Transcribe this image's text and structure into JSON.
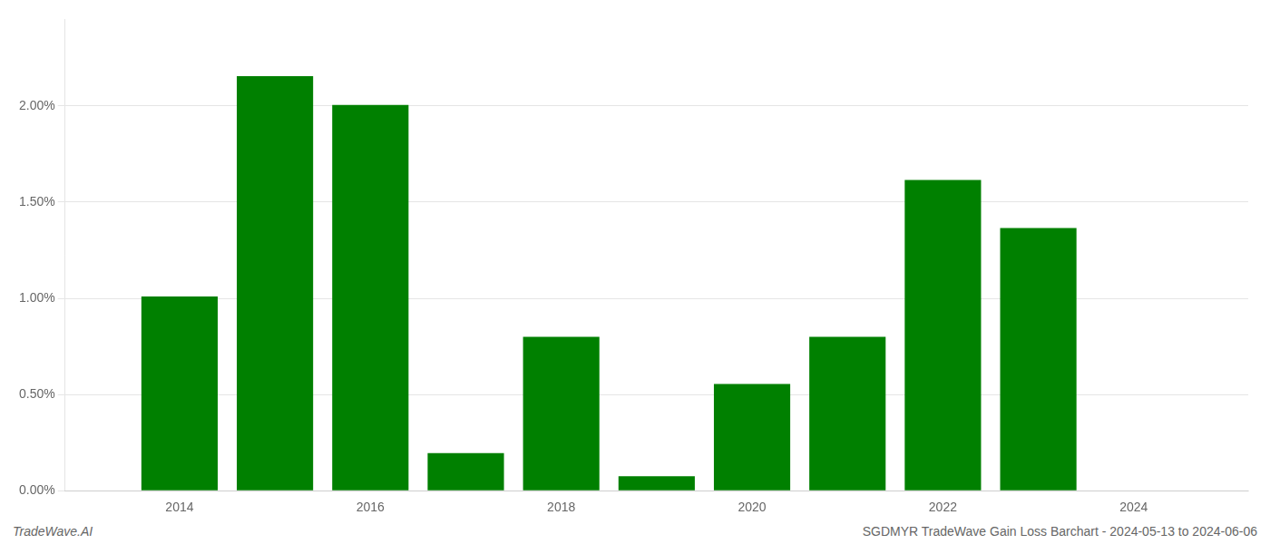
{
  "chart_data": {
    "type": "bar",
    "x": [
      2014,
      2015,
      2016,
      2017,
      2018,
      2019,
      2020,
      2021,
      2022,
      2023
    ],
    "values": [
      0.0101,
      0.02155,
      0.02005,
      0.00195,
      0.008,
      0.00075,
      0.00555,
      0.008,
      0.01615,
      0.01365
    ],
    "color": "#008000",
    "xlim": [
      2012.8,
      2025.2
    ],
    "xticks": [
      2014,
      2016,
      2018,
      2020,
      2022,
      2024
    ],
    "ylim": [
      0,
      0.0245
    ],
    "yticks": [
      {
        "value": 0.0,
        "label": "0.00%"
      },
      {
        "value": 0.005,
        "label": "0.50%"
      },
      {
        "value": 0.01,
        "label": "1.00%"
      },
      {
        "value": 0.015,
        "label": "1.50%"
      },
      {
        "value": 0.02,
        "label": "2.00%"
      }
    ],
    "grid": "y",
    "annotations": [
      "TradeWave.AI",
      "SGDMYR TradeWave Gain Loss Barchart - 2024-05-13 to 2024-06-06"
    ]
  }
}
